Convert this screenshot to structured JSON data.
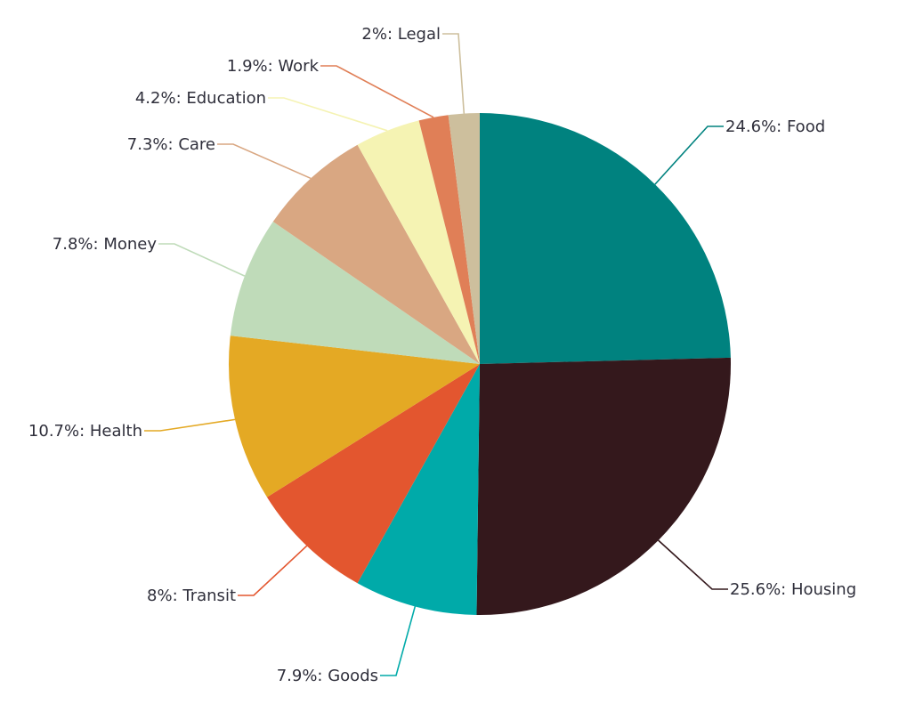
{
  "chart_data": {
    "type": "pie",
    "title": "",
    "legend": "none",
    "slices": [
      {
        "label": "Food",
        "value": 24.6,
        "display": "24.6%: Food",
        "color": "#00827f"
      },
      {
        "label": "Housing",
        "value": 25.6,
        "display": "25.6%: Housing",
        "color": "#34181c"
      },
      {
        "label": "Goods",
        "value": 7.9,
        "display": "7.9%: Goods",
        "color": "#00aaa9"
      },
      {
        "label": "Transit",
        "value": 8,
        "display": "8%: Transit",
        "color": "#e3562f"
      },
      {
        "label": "Health",
        "value": 10.7,
        "display": "10.7%: Health",
        "color": "#e4a924"
      },
      {
        "label": "Money",
        "value": 7.8,
        "display": "7.8%: Money",
        "color": "#bfdbb9"
      },
      {
        "label": "Care",
        "value": 7.3,
        "display": "7.3%: Care",
        "color": "#d9a782"
      },
      {
        "label": "Education",
        "value": 4.2,
        "display": "4.2%: Education",
        "color": "#f5f3b3"
      },
      {
        "label": "Work",
        "value": 1.9,
        "display": "1.9%: Work",
        "color": "#e07f57"
      },
      {
        "label": "Legal",
        "value": 2,
        "display": "2%: Legal",
        "color": "#cdbf9d"
      }
    ]
  }
}
